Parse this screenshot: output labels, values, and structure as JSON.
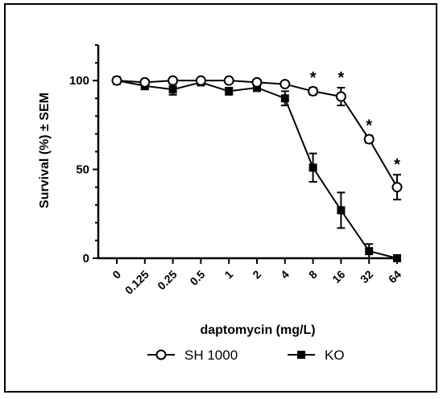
{
  "chart_data": {
    "type": "line",
    "ylabel": "Survival (%) ± SEM",
    "xlabel": "daptomycin (mg/L)",
    "categories": [
      "0",
      "0.125",
      "0.25",
      "0.5",
      "1",
      "2",
      "4",
      "8",
      "16",
      "32",
      "64"
    ],
    "ylim": [
      0,
      120
    ],
    "yticks": [
      0,
      50,
      100
    ],
    "grid": false,
    "legend_position": "bottom",
    "series": [
      {
        "name": "SH 1000",
        "marker": "open-circle",
        "color": "#000000",
        "values": [
          100,
          99,
          100,
          100,
          100,
          99,
          98,
          94,
          91,
          67,
          40
        ],
        "sem": [
          2,
          1,
          1,
          1,
          1,
          1,
          1,
          2,
          5,
          2,
          7
        ]
      },
      {
        "name": "KO",
        "marker": "filled-square",
        "color": "#000000",
        "values": [
          100,
          97,
          95,
          99,
          94,
          96,
          90,
          51,
          27,
          4,
          0
        ],
        "sem": [
          1,
          2,
          3,
          1,
          2,
          2,
          4,
          8,
          10,
          4,
          0
        ]
      }
    ],
    "significance_marker": "*",
    "significant_categories": [
      "8",
      "16",
      "32",
      "64"
    ]
  }
}
